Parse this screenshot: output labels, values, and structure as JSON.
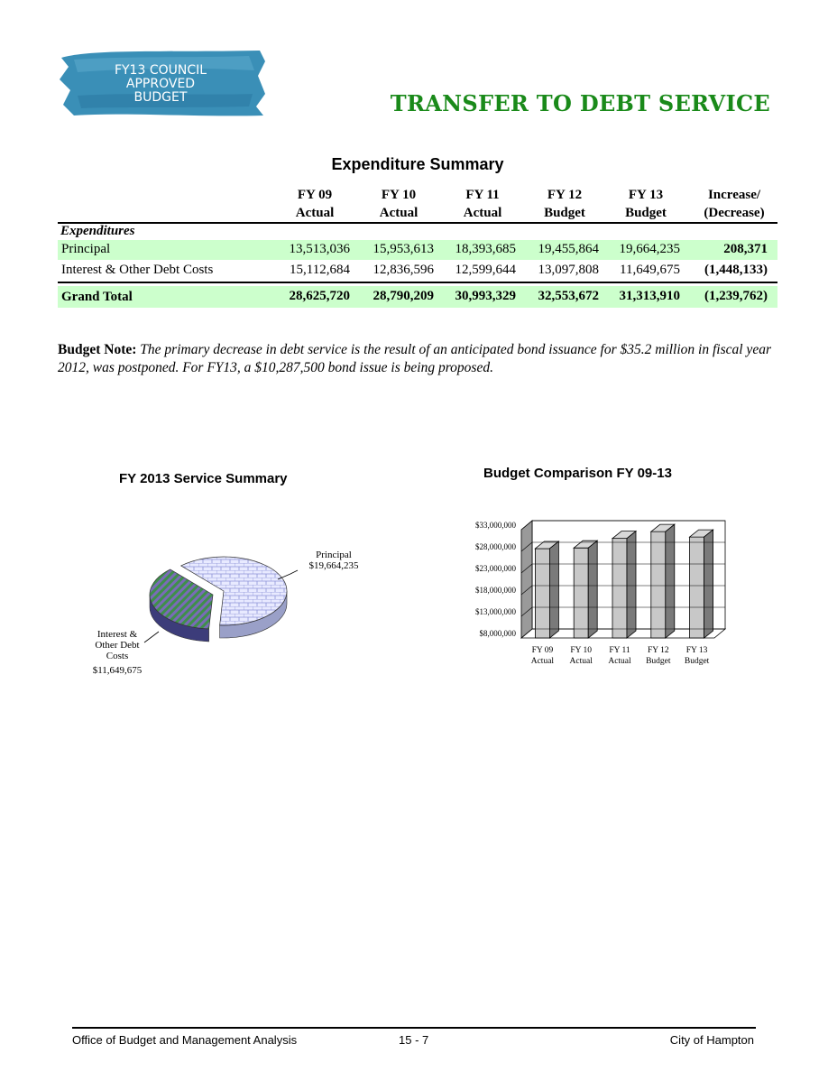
{
  "badge": {
    "line1": "FY13 COUNCIL",
    "line2": "APPROVED",
    "line3": "BUDGET",
    "color": "#3a8fb7"
  },
  "page_title": "TRANSFER TO DEBT SERVICE",
  "summary_title": "Expenditure Summary",
  "table": {
    "headers": [
      {
        "l1": "FY 09",
        "l2": "Actual"
      },
      {
        "l1": "FY 10",
        "l2": "Actual"
      },
      {
        "l1": "FY 11",
        "l2": "Actual"
      },
      {
        "l1": "FY 12",
        "l2": "Budget"
      },
      {
        "l1": "FY 13",
        "l2": "Budget"
      },
      {
        "l1": "Increase/",
        "l2": "(Decrease)"
      }
    ],
    "section_label": "Expenditures",
    "rows": [
      {
        "label": "Principal",
        "values": [
          "13,513,036",
          "15,953,613",
          "18,393,685",
          "19,455,864",
          "19,664,235",
          "208,371"
        ]
      },
      {
        "label": "Interest & Other Debt Costs",
        "values": [
          "15,112,684",
          "12,836,596",
          "12,599,644",
          "13,097,808",
          "11,649,675",
          "(1,448,133)"
        ]
      }
    ],
    "total": {
      "label": "Grand Total",
      "values": [
        "28,625,720",
        "28,790,209",
        "30,993,329",
        "32,553,672",
        "31,313,910",
        "(1,239,762)"
      ]
    }
  },
  "budget_note": {
    "label": "Budget Note:",
    "text": "The primary decrease in debt service is the result of an anticipated bond issuance for $35.2 million in fiscal year 2012, was postponed. For FY13, a $10,287,500 bond issue is being proposed."
  },
  "chart_data": [
    {
      "type": "pie",
      "title": "FY 2013 Service Summary",
      "slices": [
        {
          "label": "Principal",
          "value": 19664235,
          "value_label": "$19,664,235"
        },
        {
          "label": "Interest & Other Debt Costs",
          "label_lines": [
            "Interest &",
            "Other Debt",
            "Costs"
          ],
          "value": 11649675,
          "value_label": "$11,649,675"
        }
      ]
    },
    {
      "type": "bar",
      "title": "Budget Comparison FY 09-13",
      "categories": [
        {
          "l1": "FY 09",
          "l2": "Actual"
        },
        {
          "l1": "FY 10",
          "l2": "Actual"
        },
        {
          "l1": "FY 11",
          "l2": "Actual"
        },
        {
          "l1": "FY 12",
          "l2": "Budget"
        },
        {
          "l1": "FY 13",
          "l2": "Budget"
        }
      ],
      "values": [
        28625720,
        28790209,
        30993329,
        32553672,
        31313910
      ],
      "ylim": [
        8000000,
        33000000
      ],
      "ticks": [
        {
          "value": 8000000,
          "label": "$8,000,000"
        },
        {
          "value": 13000000,
          "label": "$13,000,000"
        },
        {
          "value": 18000000,
          "label": "$18,000,000"
        },
        {
          "value": 23000000,
          "label": "$23,000,000"
        },
        {
          "value": 28000000,
          "label": "$28,000,000"
        },
        {
          "value": 33000000,
          "label": "$33,000,000"
        }
      ]
    }
  ],
  "footer": {
    "left": "Office of Budget and Management Analysis",
    "center": "15 - 7",
    "right": "City of Hampton"
  }
}
